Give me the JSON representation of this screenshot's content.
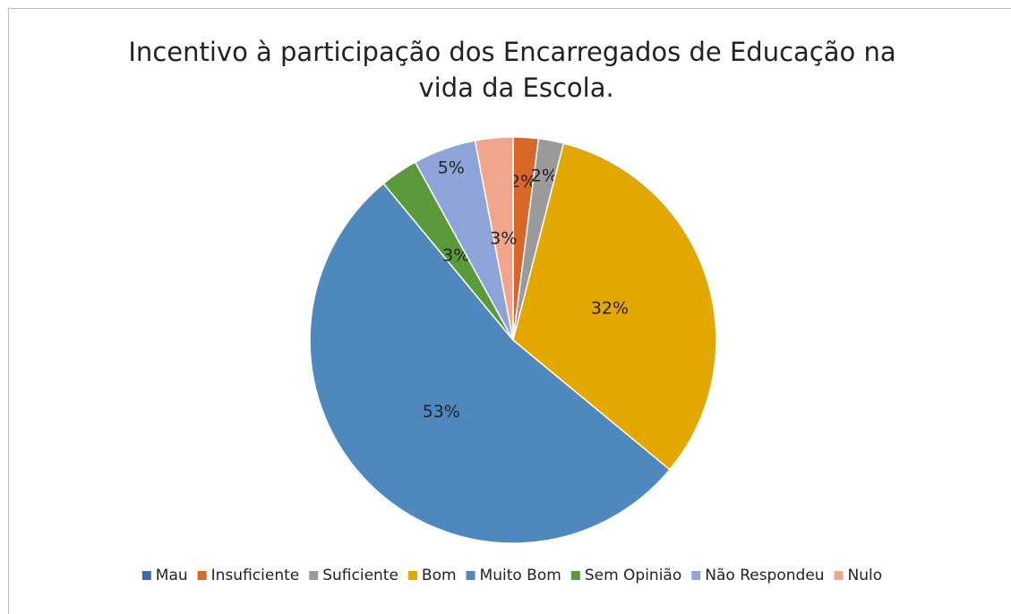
{
  "chart_data": {
    "type": "pie",
    "title": "Incentivo à participação dos Encarregados de Educação na vida da Escola.",
    "categories": [
      "Mau",
      "Insuficiente",
      "Suficiente",
      "Bom",
      "Muito Bom",
      "Sem Opinião",
      "Não Respondeu",
      "Nulo"
    ],
    "values": [
      0,
      2,
      2,
      32,
      53,
      3,
      5,
      3
    ],
    "value_labels": [
      null,
      "2%",
      "2%",
      "32%",
      "53%",
      "3%",
      "5%",
      "3%"
    ],
    "colors": [
      "#3f68b5",
      "#d8672a",
      "#9a9a9a",
      "#e2a800",
      "#4f88bd",
      "#5a9a3a",
      "#8ea3d8",
      "#f2a58d"
    ],
    "legend": "bottom"
  }
}
